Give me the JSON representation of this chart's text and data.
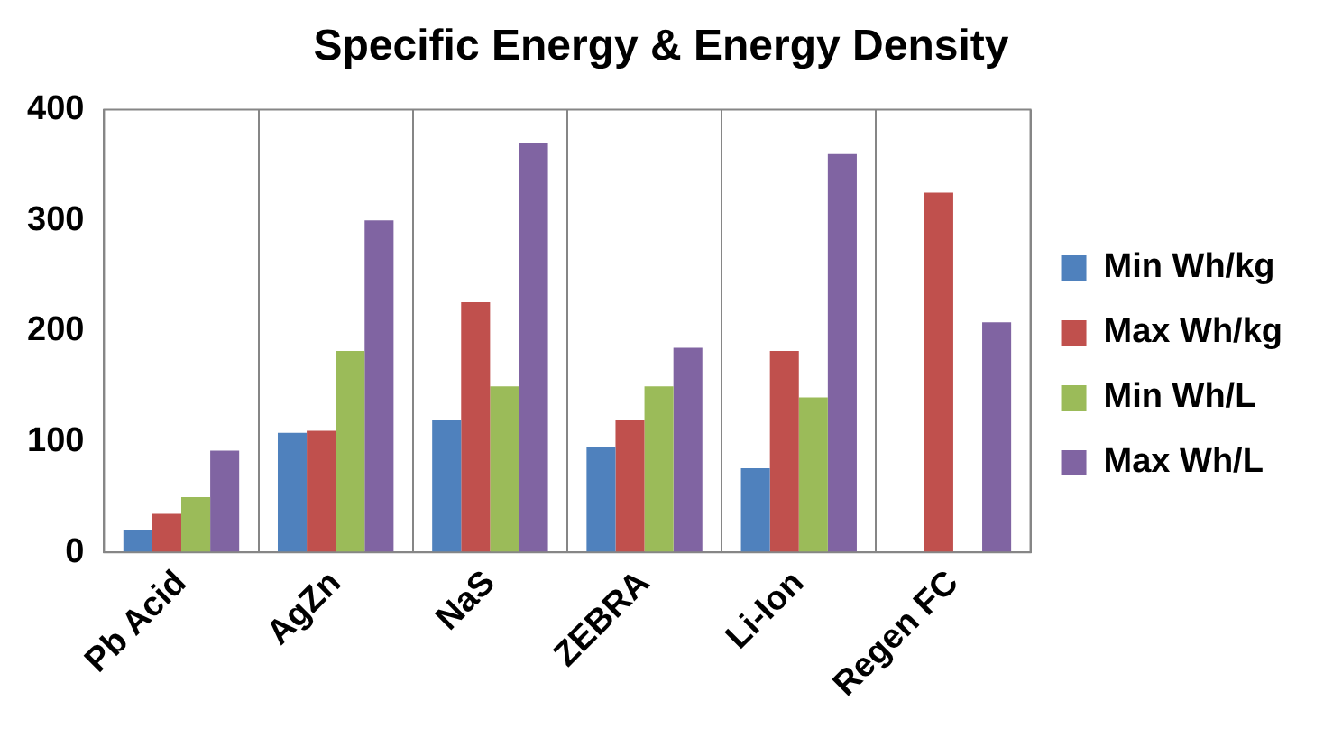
{
  "chart_data": {
    "type": "bar",
    "title": "Specific Energy & Energy Density",
    "categories": [
      "Pb Acid",
      "AgZn",
      "NaS",
      "ZEBRA",
      "Li-Ion",
      "Regen FC"
    ],
    "series": [
      {
        "name": "Min Wh/kg",
        "color": "#4f81bd",
        "values": [
          20,
          108,
          120,
          95,
          76,
          null
        ]
      },
      {
        "name": "Max Wh/kg",
        "color": "#c0504d",
        "values": [
          35,
          110,
          226,
          120,
          182,
          325
        ]
      },
      {
        "name": "Min Wh/L",
        "color": "#9bbb59",
        "values": [
          50,
          182,
          150,
          150,
          140,
          null
        ]
      },
      {
        "name": "Max Wh/L",
        "color": "#8064a2",
        "values": [
          92,
          300,
          370,
          185,
          360,
          208
        ]
      }
    ],
    "ylim": [
      0,
      400
    ],
    "yticks": [
      0,
      100,
      200,
      300,
      400
    ],
    "grid": "x",
    "legend": "right"
  }
}
